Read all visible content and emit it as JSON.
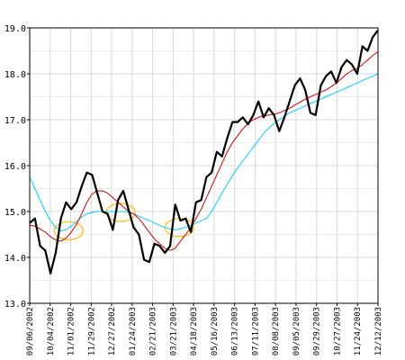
{
  "chart_data": {
    "type": "line",
    "title": "",
    "xlabel": "",
    "ylabel": "",
    "ylim": [
      13.0,
      19.0
    ],
    "y_ticks": [
      "13.0",
      "14.0",
      "15.0",
      "16.0",
      "17.0",
      "18.0",
      "19.0"
    ],
    "x_ticks": [
      "09/06/2002",
      "10/04/2002",
      "11/01/2002",
      "11/29/2002",
      "12/27/2002",
      "01/24/2003",
      "02/21/2003",
      "03/21/2003",
      "04/18/2003",
      "05/16/2003",
      "06/13/2003",
      "07/11/2003",
      "08/08/2003",
      "09/05/2003",
      "09/29/2003",
      "10/27/2003",
      "11/24/2003",
      "12/12/2003"
    ],
    "grid": true,
    "colors": {
      "price": "#000000",
      "ma_short": "#cc0000",
      "ma_long": "#00ccff",
      "highlight": "#ffbb00",
      "grid": "#d8d8d8",
      "axis": "#000000"
    },
    "series": [
      {
        "key": "price",
        "values": [
          14.75,
          14.85,
          14.25,
          14.15,
          13.65,
          14.1,
          14.85,
          15.2,
          15.05,
          15.2,
          15.55,
          15.85,
          15.8,
          15.4,
          15.0,
          14.95,
          14.6,
          15.25,
          15.45,
          15.05,
          14.65,
          14.5,
          13.95,
          13.9,
          14.3,
          14.25,
          14.1,
          14.25,
          15.15,
          14.8,
          14.85,
          14.55,
          15.2,
          15.25,
          15.75,
          15.85,
          16.3,
          16.2,
          16.6,
          16.95,
          16.95,
          17.05,
          16.9,
          17.1,
          17.4,
          17.05,
          17.25,
          17.1,
          16.75,
          17.05,
          17.4,
          17.75,
          17.9,
          17.65,
          17.15,
          17.1,
          17.75,
          17.95,
          18.05,
          17.8,
          18.15,
          18.3,
          18.2,
          18.0,
          18.6,
          18.5,
          18.8,
          18.95
        ]
      },
      {
        "key": "ma_short",
        "values": [
          14.7,
          14.68,
          14.62,
          14.55,
          14.45,
          14.38,
          14.35,
          14.42,
          14.55,
          14.72,
          14.95,
          15.2,
          15.38,
          15.45,
          15.45,
          15.4,
          15.3,
          15.2,
          15.1,
          15.0,
          14.95,
          14.85,
          14.7,
          14.55,
          14.4,
          14.3,
          14.2,
          14.15,
          14.2,
          14.35,
          14.5,
          14.65,
          14.85,
          15.05,
          15.3,
          15.55,
          15.8,
          16.05,
          16.3,
          16.5,
          16.65,
          16.8,
          16.92,
          17.0,
          17.05,
          17.08,
          17.1,
          17.12,
          17.15,
          17.2,
          17.25,
          17.32,
          17.38,
          17.45,
          17.5,
          17.55,
          17.6,
          17.65,
          17.72,
          17.8,
          17.9,
          18.0,
          18.07,
          18.12,
          18.2,
          18.3,
          18.4,
          18.48
        ]
      },
      {
        "key": "ma_long",
        "values": [
          15.75,
          15.5,
          15.25,
          15.0,
          14.8,
          14.65,
          14.58,
          14.6,
          14.68,
          14.78,
          14.88,
          14.95,
          14.98,
          15.0,
          15.0,
          15.0,
          15.0,
          15.0,
          15.0,
          14.98,
          14.95,
          14.9,
          14.85,
          14.8,
          14.75,
          14.7,
          14.65,
          14.62,
          14.6,
          14.62,
          14.66,
          14.7,
          14.75,
          14.8,
          14.85,
          15.0,
          15.2,
          15.4,
          15.6,
          15.78,
          15.95,
          16.1,
          16.25,
          16.4,
          16.55,
          16.7,
          16.82,
          16.92,
          17.0,
          17.08,
          17.15,
          17.2,
          17.25,
          17.3,
          17.35,
          17.4,
          17.45,
          17.5,
          17.55,
          17.6,
          17.65,
          17.7,
          17.75,
          17.8,
          17.85,
          17.9,
          17.95,
          18.0
        ]
      }
    ],
    "highlights": [
      {
        "x_index": 7.5,
        "y": 14.58
      },
      {
        "x_index": 17.5,
        "y": 14.98
      },
      {
        "x_index": 28.8,
        "y": 14.65
      }
    ]
  }
}
